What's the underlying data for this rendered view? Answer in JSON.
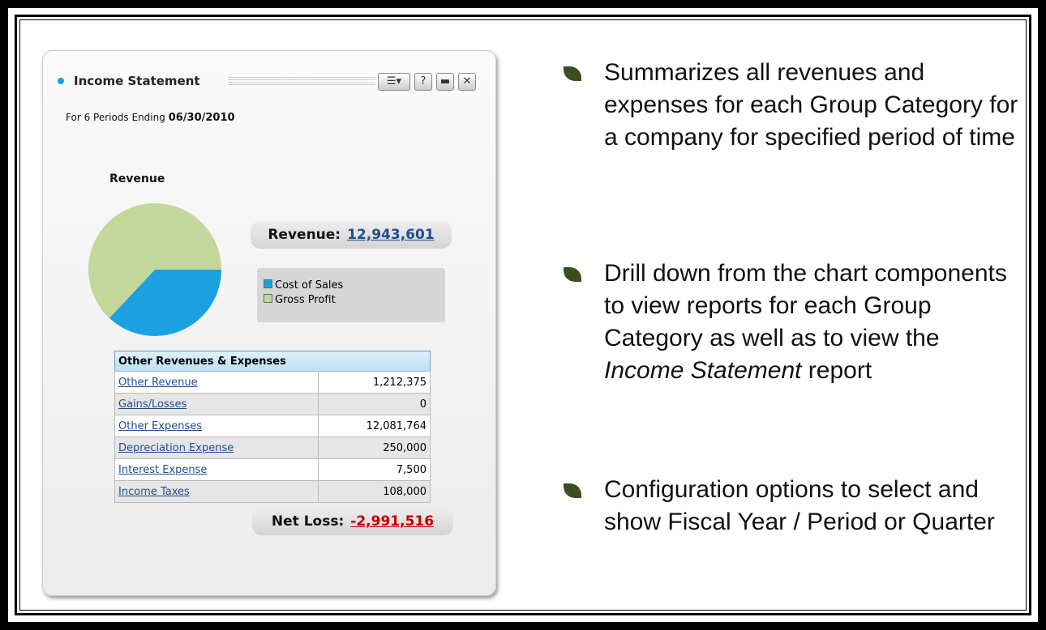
{
  "widget": {
    "title": "Income Statement",
    "subtitle": "For 6 Periods Ending",
    "period_end": "06/30/2010",
    "chart": {
      "type": "pie",
      "title": "Revenue",
      "categories": [
        "Cost of Sales",
        "Gross Profit"
      ],
      "values": [
        37,
        63
      ],
      "colors": [
        "#1ba1e2",
        "#c4d79b"
      ]
    },
    "revenue_label": "Revenue:",
    "revenue_value": "12,943,601",
    "table": {
      "header": "Other Revenues & Expenses",
      "rows": [
        [
          "Other Revenue",
          "1,212,375"
        ],
        [
          "Gains/Losses",
          "0"
        ],
        [
          "Other Expenses",
          "12,081,764"
        ],
        [
          "Depreciation Expense",
          "250,000"
        ],
        [
          "Interest Expense",
          "7,500"
        ],
        [
          "Income Taxes",
          "108,000"
        ]
      ]
    },
    "net_loss_label": "Net Loss:",
    "net_loss_value": "-2,991,516"
  },
  "bullets": [
    [
      {
        "text": "Summarizes all revenues and expenses for each Group Category for a company for specified period of time",
        "italic": false
      }
    ],
    [
      {
        "text": "Drill down from the chart components to view reports for each Group Category as well as to view the ",
        "italic": false
      },
      {
        "text": "Income Statement",
        "italic": true
      },
      {
        "text": " report",
        "italic": false
      }
    ],
    [
      {
        "text": "Configuration options to select and show Fiscal Year / Period or Quarter",
        "italic": false
      }
    ]
  ]
}
